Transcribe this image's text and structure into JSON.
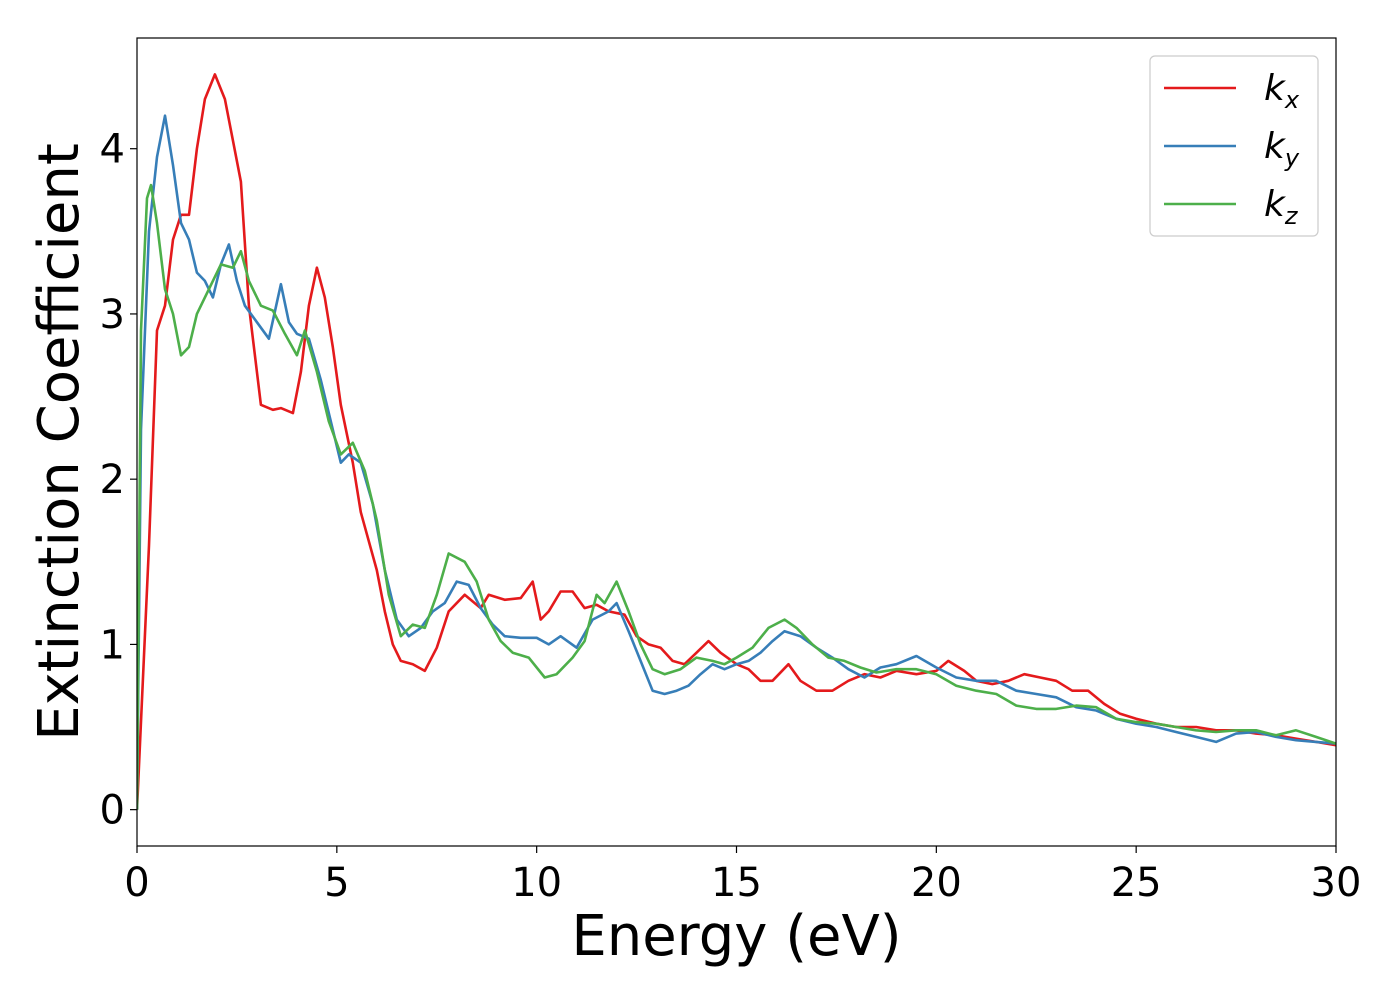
{
  "chart_data": {
    "type": "line",
    "title": "",
    "xlabel": "Energy (eV)",
    "ylabel": "Extinction Coefficient",
    "xlim": [
      0,
      30
    ],
    "ylim": [
      -0.22,
      4.67
    ],
    "xticks": [
      0,
      5,
      10,
      15,
      20,
      25,
      30
    ],
    "yticks": [
      0,
      1,
      2,
      3,
      4
    ],
    "grid": false,
    "legend_position": "top-right",
    "series": [
      {
        "name": "k_x",
        "label_base": "k",
        "label_sub": "x",
        "color": "#e41a1c",
        "points": [
          [
            0,
            0
          ],
          [
            0.3,
            1.6
          ],
          [
            0.5,
            2.9
          ],
          [
            0.7,
            3.05
          ],
          [
            0.9,
            3.45
          ],
          [
            1.1,
            3.6
          ],
          [
            1.3,
            3.6
          ],
          [
            1.5,
            4.0
          ],
          [
            1.7,
            4.3
          ],
          [
            1.95,
            4.45
          ],
          [
            2.2,
            4.3
          ],
          [
            2.4,
            4.05
          ],
          [
            2.6,
            3.8
          ],
          [
            2.8,
            3.05
          ],
          [
            3.1,
            2.45
          ],
          [
            3.4,
            2.42
          ],
          [
            3.6,
            2.43
          ],
          [
            3.9,
            2.4
          ],
          [
            4.1,
            2.65
          ],
          [
            4.3,
            3.05
          ],
          [
            4.5,
            3.28
          ],
          [
            4.7,
            3.1
          ],
          [
            4.9,
            2.8
          ],
          [
            5.1,
            2.45
          ],
          [
            5.4,
            2.1
          ],
          [
            5.6,
            1.8
          ],
          [
            6.0,
            1.45
          ],
          [
            6.2,
            1.2
          ],
          [
            6.4,
            1.0
          ],
          [
            6.6,
            0.9
          ],
          [
            6.9,
            0.88
          ],
          [
            7.2,
            0.84
          ],
          [
            7.5,
            0.98
          ],
          [
            7.8,
            1.2
          ],
          [
            8.2,
            1.3
          ],
          [
            8.6,
            1.22
          ],
          [
            8.8,
            1.3
          ],
          [
            9.2,
            1.27
          ],
          [
            9.6,
            1.28
          ],
          [
            9.9,
            1.38
          ],
          [
            10.1,
            1.15
          ],
          [
            10.3,
            1.2
          ],
          [
            10.6,
            1.32
          ],
          [
            10.9,
            1.32
          ],
          [
            11.2,
            1.22
          ],
          [
            11.5,
            1.24
          ],
          [
            11.8,
            1.2
          ],
          [
            12.2,
            1.18
          ],
          [
            12.5,
            1.05
          ],
          [
            12.8,
            1.0
          ],
          [
            13.1,
            0.98
          ],
          [
            13.4,
            0.9
          ],
          [
            13.7,
            0.88
          ],
          [
            14.0,
            0.95
          ],
          [
            14.3,
            1.02
          ],
          [
            14.6,
            0.95
          ],
          [
            15.0,
            0.88
          ],
          [
            15.3,
            0.85
          ],
          [
            15.6,
            0.78
          ],
          [
            15.9,
            0.78
          ],
          [
            16.3,
            0.88
          ],
          [
            16.6,
            0.78
          ],
          [
            17.0,
            0.72
          ],
          [
            17.4,
            0.72
          ],
          [
            17.8,
            0.78
          ],
          [
            18.2,
            0.82
          ],
          [
            18.6,
            0.8
          ],
          [
            19.0,
            0.84
          ],
          [
            19.5,
            0.82
          ],
          [
            20.0,
            0.84
          ],
          [
            20.3,
            0.9
          ],
          [
            20.7,
            0.84
          ],
          [
            21.0,
            0.78
          ],
          [
            21.4,
            0.76
          ],
          [
            21.8,
            0.78
          ],
          [
            22.2,
            0.82
          ],
          [
            22.6,
            0.8
          ],
          [
            23.0,
            0.78
          ],
          [
            23.4,
            0.72
          ],
          [
            23.8,
            0.72
          ],
          [
            24.2,
            0.64
          ],
          [
            24.6,
            0.58
          ],
          [
            25.0,
            0.55
          ],
          [
            25.5,
            0.52
          ],
          [
            26.0,
            0.5
          ],
          [
            26.5,
            0.5
          ],
          [
            27.0,
            0.48
          ],
          [
            27.5,
            0.48
          ],
          [
            28.0,
            0.46
          ],
          [
            28.5,
            0.45
          ],
          [
            29.0,
            0.43
          ],
          [
            29.5,
            0.41
          ],
          [
            30.0,
            0.39
          ]
        ]
      },
      {
        "name": "k_y",
        "label_base": "k",
        "label_sub": "y",
        "color": "#377eb8",
        "points": [
          [
            0,
            0
          ],
          [
            0.1,
            2.3
          ],
          [
            0.3,
            3.5
          ],
          [
            0.5,
            3.95
          ],
          [
            0.7,
            4.2
          ],
          [
            0.9,
            3.9
          ],
          [
            1.1,
            3.55
          ],
          [
            1.3,
            3.45
          ],
          [
            1.5,
            3.25
          ],
          [
            1.7,
            3.2
          ],
          [
            1.9,
            3.1
          ],
          [
            2.1,
            3.3
          ],
          [
            2.3,
            3.42
          ],
          [
            2.5,
            3.2
          ],
          [
            2.7,
            3.05
          ],
          [
            3.0,
            2.95
          ],
          [
            3.3,
            2.85
          ],
          [
            3.6,
            3.18
          ],
          [
            3.8,
            2.95
          ],
          [
            4.0,
            2.88
          ],
          [
            4.3,
            2.85
          ],
          [
            4.6,
            2.6
          ],
          [
            4.9,
            2.3
          ],
          [
            5.1,
            2.1
          ],
          [
            5.3,
            2.15
          ],
          [
            5.6,
            2.1
          ],
          [
            5.9,
            1.85
          ],
          [
            6.2,
            1.45
          ],
          [
            6.5,
            1.15
          ],
          [
            6.8,
            1.05
          ],
          [
            7.1,
            1.1
          ],
          [
            7.4,
            1.2
          ],
          [
            7.7,
            1.25
          ],
          [
            8.0,
            1.38
          ],
          [
            8.3,
            1.36
          ],
          [
            8.6,
            1.22
          ],
          [
            8.9,
            1.12
          ],
          [
            9.2,
            1.05
          ],
          [
            9.6,
            1.04
          ],
          [
            10.0,
            1.04
          ],
          [
            10.3,
            1.0
          ],
          [
            10.6,
            1.05
          ],
          [
            11.0,
            0.98
          ],
          [
            11.4,
            1.15
          ],
          [
            11.8,
            1.2
          ],
          [
            12.0,
            1.25
          ],
          [
            12.3,
            1.08
          ],
          [
            12.6,
            0.9
          ],
          [
            12.9,
            0.72
          ],
          [
            13.2,
            0.7
          ],
          [
            13.5,
            0.72
          ],
          [
            13.8,
            0.75
          ],
          [
            14.1,
            0.82
          ],
          [
            14.4,
            0.88
          ],
          [
            14.7,
            0.85
          ],
          [
            15.0,
            0.88
          ],
          [
            15.3,
            0.9
          ],
          [
            15.6,
            0.95
          ],
          [
            15.9,
            1.02
          ],
          [
            16.2,
            1.08
          ],
          [
            16.6,
            1.05
          ],
          [
            17.0,
            0.98
          ],
          [
            17.4,
            0.92
          ],
          [
            17.8,
            0.85
          ],
          [
            18.2,
            0.8
          ],
          [
            18.6,
            0.86
          ],
          [
            19.0,
            0.88
          ],
          [
            19.5,
            0.93
          ],
          [
            20.0,
            0.86
          ],
          [
            20.5,
            0.8
          ],
          [
            21.0,
            0.78
          ],
          [
            21.5,
            0.78
          ],
          [
            22.0,
            0.72
          ],
          [
            22.5,
            0.7
          ],
          [
            23.0,
            0.68
          ],
          [
            23.5,
            0.62
          ],
          [
            24.0,
            0.6
          ],
          [
            24.5,
            0.55
          ],
          [
            25.0,
            0.52
          ],
          [
            25.5,
            0.5
          ],
          [
            26.0,
            0.47
          ],
          [
            26.5,
            0.44
          ],
          [
            27.0,
            0.41
          ],
          [
            27.5,
            0.46
          ],
          [
            28.0,
            0.47
          ],
          [
            28.5,
            0.44
          ],
          [
            29.0,
            0.42
          ],
          [
            29.5,
            0.41
          ],
          [
            30.0,
            0.4
          ]
        ]
      },
      {
        "name": "k_z",
        "label_base": "k",
        "label_sub": "z",
        "color": "#4daf4a",
        "points": [
          [
            0,
            0
          ],
          [
            0.1,
            2.9
          ],
          [
            0.25,
            3.7
          ],
          [
            0.35,
            3.78
          ],
          [
            0.5,
            3.55
          ],
          [
            0.7,
            3.15
          ],
          [
            0.9,
            3.0
          ],
          [
            1.1,
            2.75
          ],
          [
            1.3,
            2.8
          ],
          [
            1.5,
            3.0
          ],
          [
            1.8,
            3.15
          ],
          [
            2.1,
            3.3
          ],
          [
            2.4,
            3.28
          ],
          [
            2.6,
            3.38
          ],
          [
            2.8,
            3.2
          ],
          [
            3.1,
            3.05
          ],
          [
            3.4,
            3.02
          ],
          [
            3.7,
            2.88
          ],
          [
            4.0,
            2.75
          ],
          [
            4.2,
            2.9
          ],
          [
            4.5,
            2.65
          ],
          [
            4.8,
            2.35
          ],
          [
            5.1,
            2.15
          ],
          [
            5.4,
            2.22
          ],
          [
            5.7,
            2.05
          ],
          [
            6.0,
            1.75
          ],
          [
            6.3,
            1.3
          ],
          [
            6.6,
            1.05
          ],
          [
            6.9,
            1.12
          ],
          [
            7.2,
            1.1
          ],
          [
            7.5,
            1.3
          ],
          [
            7.8,
            1.55
          ],
          [
            8.2,
            1.5
          ],
          [
            8.5,
            1.38
          ],
          [
            8.8,
            1.15
          ],
          [
            9.1,
            1.02
          ],
          [
            9.4,
            0.95
          ],
          [
            9.8,
            0.92
          ],
          [
            10.2,
            0.8
          ],
          [
            10.5,
            0.82
          ],
          [
            10.9,
            0.92
          ],
          [
            11.2,
            1.02
          ],
          [
            11.5,
            1.3
          ],
          [
            11.7,
            1.25
          ],
          [
            12.0,
            1.38
          ],
          [
            12.3,
            1.2
          ],
          [
            12.6,
            1.0
          ],
          [
            12.9,
            0.85
          ],
          [
            13.2,
            0.82
          ],
          [
            13.6,
            0.85
          ],
          [
            14.0,
            0.92
          ],
          [
            14.4,
            0.9
          ],
          [
            14.7,
            0.88
          ],
          [
            15.0,
            0.92
          ],
          [
            15.4,
            0.98
          ],
          [
            15.8,
            1.1
          ],
          [
            16.2,
            1.15
          ],
          [
            16.5,
            1.1
          ],
          [
            16.9,
            1.0
          ],
          [
            17.3,
            0.92
          ],
          [
            17.7,
            0.9
          ],
          [
            18.1,
            0.86
          ],
          [
            18.5,
            0.83
          ],
          [
            19.0,
            0.85
          ],
          [
            19.5,
            0.85
          ],
          [
            20.0,
            0.82
          ],
          [
            20.5,
            0.75
          ],
          [
            21.0,
            0.72
          ],
          [
            21.5,
            0.7
          ],
          [
            22.0,
            0.63
          ],
          [
            22.5,
            0.61
          ],
          [
            23.0,
            0.61
          ],
          [
            23.5,
            0.63
          ],
          [
            24.0,
            0.62
          ],
          [
            24.5,
            0.55
          ],
          [
            25.0,
            0.53
          ],
          [
            25.5,
            0.52
          ],
          [
            26.0,
            0.5
          ],
          [
            26.5,
            0.48
          ],
          [
            27.0,
            0.47
          ],
          [
            27.5,
            0.48
          ],
          [
            28.0,
            0.48
          ],
          [
            28.5,
            0.45
          ],
          [
            29.0,
            0.48
          ],
          [
            29.5,
            0.44
          ],
          [
            30.0,
            0.4
          ]
        ]
      }
    ]
  }
}
